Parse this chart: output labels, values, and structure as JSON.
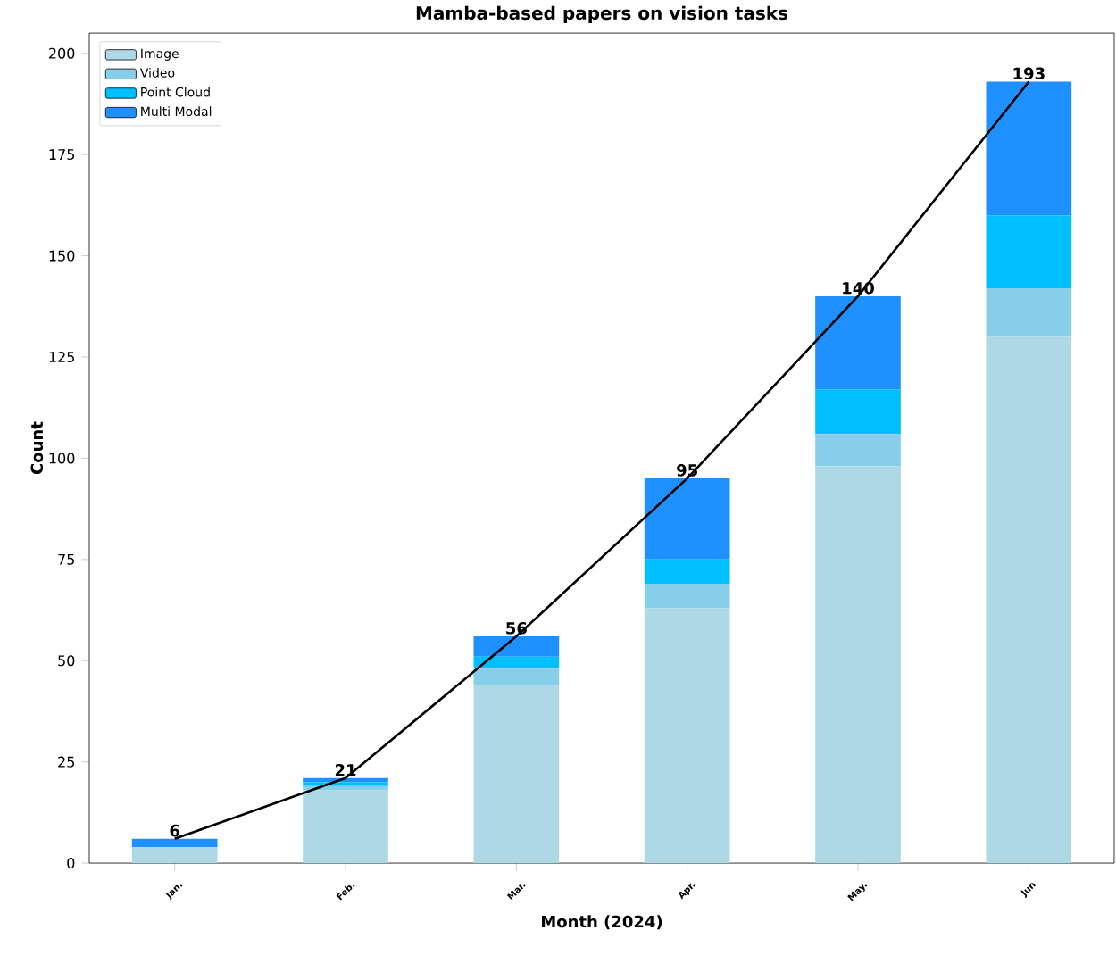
{
  "chart_data": {
    "type": "bar",
    "title": "Mamba-based papers on vision tasks",
    "xlabel": "Month (2024)",
    "ylabel": "Count",
    "categories": [
      "Jan.",
      "Feb.",
      "Mar.",
      "Apr.",
      "May.",
      "Jun"
    ],
    "stacked": true,
    "series": [
      {
        "name": "Image",
        "color": "#add8e6",
        "values": [
          4,
          18,
          44,
          63,
          98,
          130
        ]
      },
      {
        "name": "Video",
        "color": "#87ceeb",
        "values": [
          0,
          1,
          4,
          6,
          8,
          12
        ]
      },
      {
        "name": "Point Cloud",
        "color": "#00bfff",
        "values": [
          0,
          1,
          3,
          6,
          11,
          18
        ]
      },
      {
        "name": "Multi Modal",
        "color": "#1e90ff",
        "values": [
          2,
          1,
          5,
          20,
          23,
          33
        ]
      },
      {
        "type": "line",
        "color": "#000000",
        "values": [
          6,
          21,
          56,
          95,
          140,
          193
        ]
      }
    ],
    "totals": [
      "6",
      "21",
      "56",
      "95",
      "140",
      "193"
    ],
    "ylim": [
      0,
      205
    ],
    "yticks": [
      0,
      25,
      50,
      75,
      100,
      125,
      150,
      175,
      200
    ],
    "legend": "top left",
    "grid": false
  }
}
